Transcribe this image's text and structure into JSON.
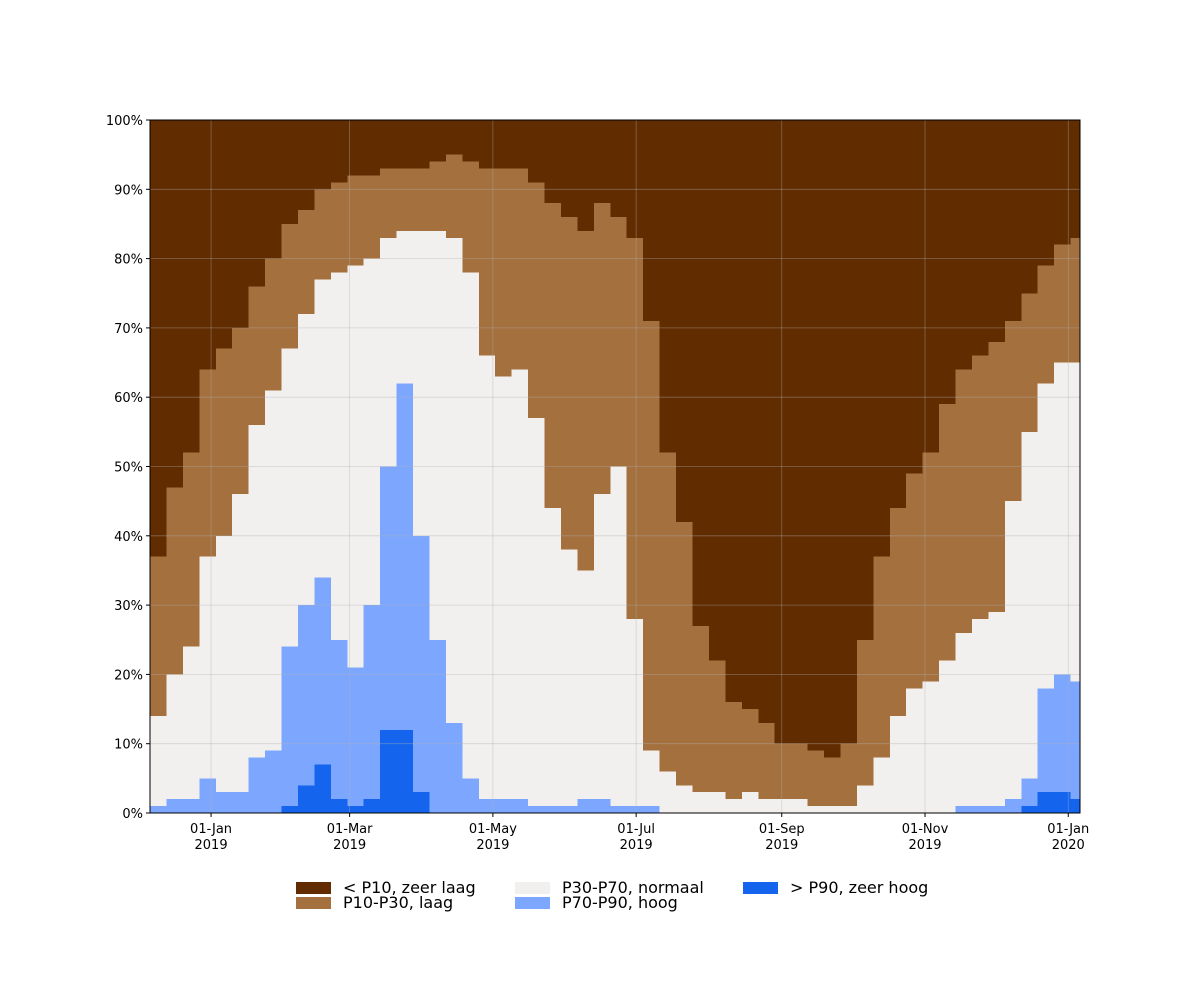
{
  "chart_data": {
    "type": "stacked-step-area",
    "x": [
      "2018-12-06",
      "2018-12-13",
      "2018-12-20",
      "2018-12-27",
      "2019-01-03",
      "2019-01-10",
      "2019-01-17",
      "2019-01-24",
      "2019-01-31",
      "2019-02-07",
      "2019-02-14",
      "2019-02-21",
      "2019-02-28",
      "2019-03-07",
      "2019-03-14",
      "2019-03-21",
      "2019-03-28",
      "2019-04-04",
      "2019-04-11",
      "2019-04-18",
      "2019-04-25",
      "2019-05-02",
      "2019-05-09",
      "2019-05-16",
      "2019-05-23",
      "2019-05-30",
      "2019-06-06",
      "2019-06-13",
      "2019-06-20",
      "2019-06-27",
      "2019-07-04",
      "2019-07-11",
      "2019-07-18",
      "2019-07-25",
      "2019-08-01",
      "2019-08-08",
      "2019-08-15",
      "2019-08-22",
      "2019-08-29",
      "2019-09-05",
      "2019-09-12",
      "2019-09-19",
      "2019-09-26",
      "2019-10-03",
      "2019-10-10",
      "2019-10-17",
      "2019-10-24",
      "2019-10-31",
      "2019-11-07",
      "2019-11-14",
      "2019-11-21",
      "2019-11-28",
      "2019-12-05",
      "2019-12-12",
      "2019-12-19",
      "2019-12-26",
      "2020-01-02"
    ],
    "series": [
      {
        "name": "< P10, zeer laag",
        "color": "#612c00",
        "values": [
          63,
          53,
          48,
          36,
          33,
          30,
          24,
          20,
          15,
          13,
          10,
          9,
          8,
          8,
          7,
          7,
          7,
          6,
          5,
          6,
          7,
          7,
          7,
          9,
          12,
          14,
          16,
          12,
          14,
          17,
          29,
          48,
          58,
          73,
          78,
          84,
          85,
          87,
          90,
          90,
          91,
          92,
          90,
          75,
          63,
          56,
          51,
          48,
          41,
          36,
          34,
          32,
          29,
          25,
          21,
          18,
          17
        ]
      },
      {
        "name": "P10-P30, laag",
        "color": "#a4703e",
        "values": [
          23,
          27,
          28,
          27,
          27,
          24,
          20,
          19,
          18,
          15,
          13,
          13,
          13,
          12,
          10,
          9,
          9,
          10,
          12,
          16,
          27,
          30,
          29,
          34,
          44,
          48,
          49,
          42,
          36,
          55,
          62,
          46,
          38,
          24,
          19,
          14,
          12,
          11,
          8,
          8,
          8,
          7,
          9,
          21,
          29,
          30,
          31,
          33,
          37,
          38,
          38,
          39,
          26,
          20,
          17,
          17,
          18
        ]
      },
      {
        "name": "P30-P70, normaal",
        "color": "#f2f0ef",
        "values": [
          13,
          18,
          22,
          32,
          37,
          43,
          48,
          52,
          43,
          42,
          43,
          53,
          58,
          50,
          33,
          22,
          44,
          59,
          70,
          73,
          64,
          61,
          62,
          56,
          43,
          37,
          33,
          44,
          49,
          27,
          8,
          6,
          4,
          3,
          3,
          2,
          3,
          2,
          2,
          2,
          1,
          1,
          1,
          4,
          8,
          14,
          18,
          19,
          22,
          25,
          27,
          28,
          43,
          50,
          44,
          45,
          46
        ]
      },
      {
        "name": "P70-P90, hoog",
        "color": "#7da7ff",
        "values": [
          1,
          2,
          2,
          5,
          3,
          3,
          8,
          9,
          23,
          26,
          27,
          23,
          20,
          28,
          38,
          50,
          37,
          25,
          13,
          5,
          2,
          2,
          2,
          1,
          1,
          1,
          2,
          2,
          1,
          1,
          1,
          0,
          0,
          0,
          0,
          0,
          0,
          0,
          0,
          0,
          0,
          0,
          0,
          0,
          0,
          0,
          0,
          0,
          0,
          1,
          1,
          1,
          2,
          4,
          15,
          17,
          17
        ]
      },
      {
        "name": "> P90, zeer hoog",
        "color": "#1464ee",
        "values": [
          0,
          0,
          0,
          0,
          0,
          0,
          0,
          0,
          1,
          4,
          7,
          2,
          1,
          2,
          12,
          12,
          3,
          0,
          0,
          0,
          0,
          0,
          0,
          0,
          0,
          0,
          0,
          0,
          0,
          0,
          0,
          0,
          0,
          0,
          0,
          0,
          0,
          0,
          0,
          0,
          0,
          0,
          0,
          0,
          0,
          0,
          0,
          0,
          0,
          0,
          0,
          0,
          0,
          1,
          3,
          3,
          2
        ]
      }
    ],
    "xlim": [
      "2018-12-06",
      "2020-01-06"
    ],
    "xticks": [
      {
        "value": "2019-01-01",
        "label": "01-Jan\n2019"
      },
      {
        "value": "2019-03-01",
        "label": "01-Mar\n2019"
      },
      {
        "value": "2019-05-01",
        "label": "01-May\n2019"
      },
      {
        "value": "2019-07-01",
        "label": "01-Jul\n2019"
      },
      {
        "value": "2019-09-01",
        "label": "01-Sep\n2019"
      },
      {
        "value": "2019-11-01",
        "label": "01-Nov\n2019"
      },
      {
        "value": "2020-01-01",
        "label": "01-Jan\n2020"
      }
    ],
    "ylim": [
      0,
      100
    ],
    "yticks": [
      {
        "value": 0,
        "label": "0%"
      },
      {
        "value": 10,
        "label": "10%"
      },
      {
        "value": 20,
        "label": "20%"
      },
      {
        "value": 30,
        "label": "30%"
      },
      {
        "value": 40,
        "label": "40%"
      },
      {
        "value": 50,
        "label": "50%"
      },
      {
        "value": 60,
        "label": "60%"
      },
      {
        "value": 70,
        "label": "70%"
      },
      {
        "value": 80,
        "label": "80%"
      },
      {
        "value": 90,
        "label": "90%"
      },
      {
        "value": 100,
        "label": "100%"
      }
    ],
    "grid": true,
    "legend": "bottom"
  }
}
